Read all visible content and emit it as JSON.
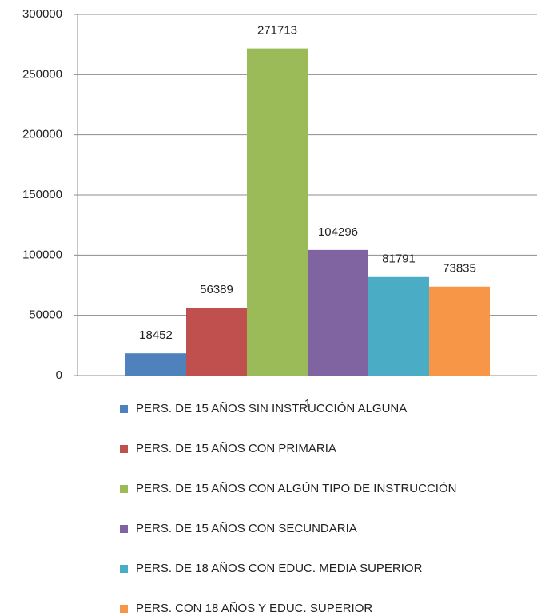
{
  "chart_data": {
    "type": "bar",
    "categories": [
      "1"
    ],
    "series": [
      {
        "name": "PERS. DE 15 AÑOS SIN INSTRUCCIÓN ALGUNA",
        "color": "#4f81bd",
        "values": [
          18452
        ]
      },
      {
        "name": "PERS. DE 15 AÑOS CON PRIMARIA",
        "color": "#c0504d",
        "values": [
          56389
        ]
      },
      {
        "name": "PERS. DE 15 AÑOS CON ALGÚN TIPO DE INSTRUCCIÓN",
        "color": "#9bbb59",
        "values": [
          271713
        ]
      },
      {
        "name": "PERS. DE 15 AÑOS CON SECUNDARIA",
        "color": "#8064a2",
        "values": [
          104296
        ]
      },
      {
        "name": "PERS. DE 18 AÑOS CON EDUC. MEDIA SUPERIOR",
        "color": "#4bacc6",
        "values": [
          81791
        ]
      },
      {
        "name": "PERS. CON 18 AÑOS Y EDUC. SUPERIOR",
        "color": "#f79646",
        "values": [
          73835
        ]
      }
    ],
    "ylim": [
      0,
      300000
    ],
    "yticks": [
      0,
      50000,
      100000,
      150000,
      200000,
      250000,
      300000
    ],
    "grid": true,
    "legend": "bottom"
  }
}
